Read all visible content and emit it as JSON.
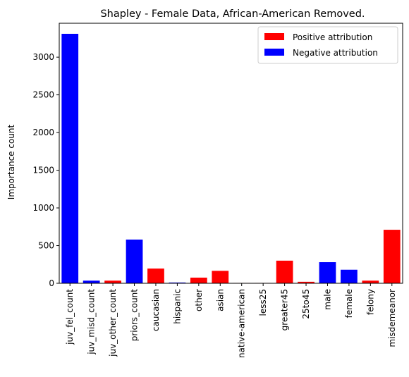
{
  "chart_data": {
    "type": "bar",
    "title": "Shapley - Female Data, African-American Removed.",
    "xlabel": "",
    "ylabel": "Importance count",
    "ylim": [
      0,
      3450
    ],
    "yticks": [
      0,
      500,
      1000,
      1500,
      2000,
      2500,
      3000
    ],
    "grid": false,
    "legend_position": "top-right",
    "legend": [
      {
        "label": "Positive attribution",
        "color": "#ff0000"
      },
      {
        "label": "Negative attribution",
        "color": "#0000ff"
      }
    ],
    "categories": [
      "juv_fel_count",
      "juv_misd_count",
      "juv_other_count",
      "priors_count",
      "caucasian",
      "hispanic",
      "other",
      "asian",
      "native-american",
      "less25",
      "greater45",
      "25to45",
      "male",
      "female",
      "felony",
      "misdemeanor"
    ],
    "values": [
      3310,
      35,
      35,
      580,
      195,
      10,
      75,
      165,
      5,
      5,
      300,
      20,
      280,
      180,
      35,
      710
    ],
    "colors": [
      "#0000ff",
      "#0000ff",
      "#ff0000",
      "#0000ff",
      "#ff0000",
      "#0000ff",
      "#ff0000",
      "#ff0000",
      "#ff0000",
      "#ff0000",
      "#ff0000",
      "#ff0000",
      "#0000ff",
      "#0000ff",
      "#ff0000",
      "#ff0000"
    ]
  }
}
